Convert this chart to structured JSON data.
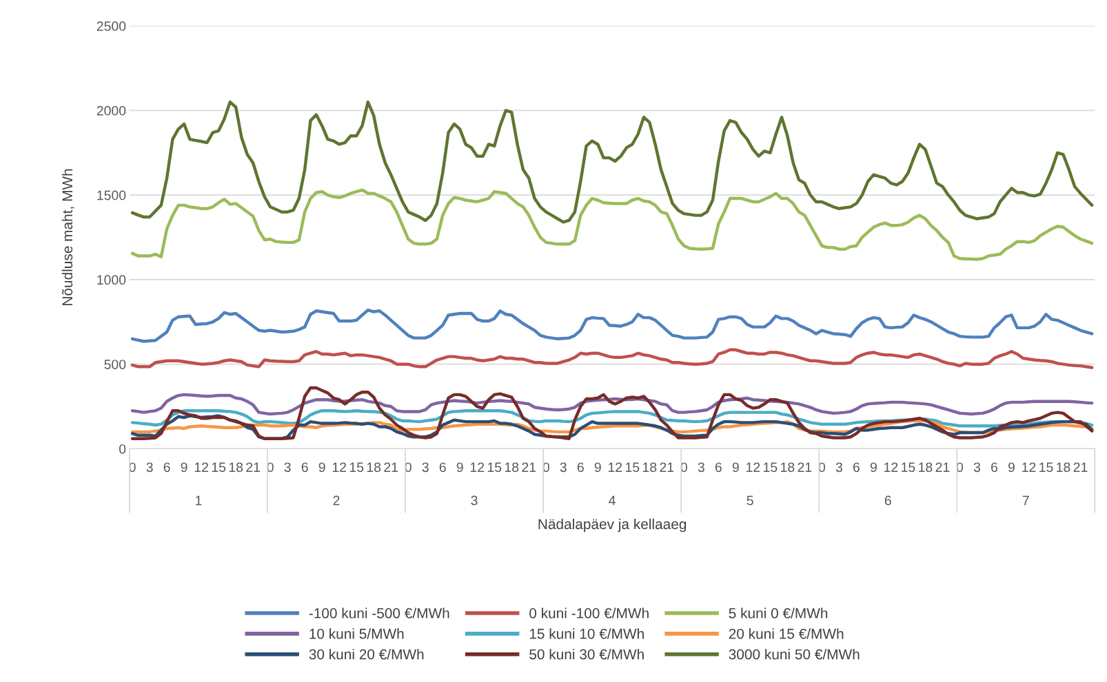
{
  "chart_data": {
    "type": "line",
    "xlabel": "Nädalapäev ja kellaaeg",
    "ylabel": "Nõudluse maht, MWh",
    "ylim": [
      0,
      2500
    ],
    "yticks": [
      0,
      500,
      1000,
      1500,
      2000,
      2500
    ],
    "categories": [
      "0",
      null,
      null,
      "3",
      null,
      null,
      "6",
      null,
      null,
      "9",
      null,
      null,
      "12",
      null,
      null,
      "15",
      null,
      null,
      "18",
      null,
      null,
      "21",
      null,
      null,
      "0",
      null,
      null,
      "3",
      null,
      null,
      "6",
      null,
      null,
      "9",
      null,
      null,
      "12",
      null,
      null,
      "15",
      null,
      null,
      "18",
      null,
      null,
      "21",
      null,
      null,
      "0",
      null,
      null,
      "3",
      null,
      null,
      "6",
      null,
      null,
      "9",
      null,
      null,
      "12",
      null,
      null,
      "15",
      null,
      null,
      "18",
      null,
      null,
      "21",
      null,
      null,
      "0",
      null,
      null,
      "3",
      null,
      null,
      "6",
      null,
      null,
      "9",
      null,
      null,
      "12",
      null,
      null,
      "15",
      null,
      null,
      "18",
      null,
      null,
      "21",
      null,
      null,
      "0",
      null,
      null,
      "3",
      null,
      null,
      "6",
      null,
      null,
      "9",
      null,
      null,
      "12",
      null,
      null,
      "15",
      null,
      null,
      "18",
      null,
      null,
      "21",
      null,
      null,
      "0",
      null,
      null,
      "3",
      null,
      null,
      "6",
      null,
      null,
      "9",
      null,
      null,
      "12",
      null,
      null,
      "15",
      null,
      null,
      "18",
      null,
      null,
      "21",
      null,
      null,
      "0",
      null,
      null,
      "3",
      null,
      null,
      "6",
      null,
      null,
      "9",
      null,
      null,
      "12",
      null,
      null,
      "15",
      null,
      null,
      "18",
      null,
      null,
      "21",
      null,
      null
    ],
    "annotations": [
      "1",
      "2",
      "3",
      "4",
      "5",
      "6",
      "7"
    ],
    "grid": "y",
    "legend": "bottom",
    "marker": "none",
    "line_style": "solid",
    "series": [
      {
        "name": "-100 kuni -500 €/MWh",
        "color": "#4f81bd",
        "values": [
          650,
          642,
          635,
          638,
          640,
          665,
          690,
          760,
          780,
          783,
          785,
          735,
          738,
          740,
          750,
          770,
          805,
          795,
          800,
          775,
          750,
          725,
          700,
          695,
          700,
          695,
          690,
          692,
          695,
          705,
          720,
          795,
          815,
          810,
          805,
          800,
          755,
          755,
          755,
          760,
          790,
          820,
          810,
          815,
          790,
          760,
          730,
          700,
          670,
          655,
          655,
          655,
          670,
          700,
          730,
          790,
          795,
          800,
          800,
          800,
          765,
          755,
          755,
          770,
          815,
          795,
          790,
          765,
          740,
          720,
          700,
          670,
          660,
          655,
          650,
          652,
          655,
          670,
          700,
          765,
          775,
          772,
          770,
          730,
          728,
          725,
          735,
          750,
          795,
          775,
          775,
          760,
          730,
          700,
          670,
          665,
          655,
          655,
          655,
          658,
          660,
          690,
          765,
          770,
          780,
          780,
          770,
          735,
          720,
          720,
          720,
          745,
          785,
          770,
          770,
          755,
          730,
          715,
          700,
          680,
          700,
          690,
          680,
          678,
          675,
          665,
          710,
          745,
          765,
          775,
          770,
          720,
          715,
          718,
          720,
          745,
          790,
          775,
          765,
          750,
          730,
          710,
          690,
          680,
          665,
          662,
          660,
          660,
          660,
          665,
          715,
          745,
          780,
          790,
          715,
          715,
          715,
          725,
          750,
          795,
          765,
          760,
          745,
          730,
          715,
          700,
          690,
          680
        ]
      },
      {
        "name": "0 kuni -100 €/MWh",
        "color": "#c0504d",
        "values": [
          495,
          485,
          485,
          485,
          510,
          515,
          520,
          520,
          520,
          515,
          510,
          505,
          500,
          502,
          505,
          510,
          520,
          525,
          520,
          515,
          495,
          490,
          485,
          525,
          520,
          518,
          517,
          515,
          515,
          520,
          555,
          565,
          575,
          560,
          560,
          555,
          560,
          565,
          550,
          555,
          555,
          550,
          545,
          540,
          530,
          520,
          500,
          500,
          500,
          490,
          485,
          485,
          505,
          525,
          535,
          545,
          545,
          540,
          535,
          535,
          525,
          520,
          525,
          530,
          545,
          535,
          535,
          530,
          530,
          520,
          510,
          510,
          505,
          505,
          505,
          515,
          525,
          540,
          565,
          560,
          565,
          565,
          555,
          545,
          540,
          540,
          545,
          550,
          565,
          555,
          550,
          540,
          530,
          525,
          510,
          510,
          505,
          502,
          500,
          502,
          505,
          515,
          560,
          570,
          585,
          585,
          575,
          565,
          565,
          560,
          560,
          570,
          570,
          565,
          555,
          550,
          540,
          530,
          520,
          520,
          515,
          510,
          505,
          505,
          505,
          510,
          540,
          555,
          565,
          570,
          560,
          555,
          555,
          550,
          545,
          540,
          555,
          560,
          550,
          540,
          530,
          515,
          505,
          500,
          490,
          505,
          500,
          500,
          500,
          505,
          535,
          550,
          560,
          575,
          560,
          535,
          530,
          525,
          522,
          520,
          515,
          505,
          500,
          495,
          492,
          490,
          485,
          480
        ]
      },
      {
        "name": "5 kuni 0 €/MWh",
        "color": "#9bbb59",
        "values": [
          1155,
          1140,
          1140,
          1140,
          1150,
          1135,
          1300,
          1380,
          1440,
          1440,
          1430,
          1425,
          1420,
          1420,
          1430,
          1455,
          1475,
          1445,
          1450,
          1425,
          1400,
          1375,
          1290,
          1235,
          1240,
          1225,
          1222,
          1220,
          1220,
          1235,
          1400,
          1480,
          1515,
          1520,
          1500,
          1490,
          1485,
          1495,
          1510,
          1520,
          1530,
          1510,
          1510,
          1495,
          1480,
          1460,
          1400,
          1320,
          1240,
          1215,
          1210,
          1210,
          1215,
          1240,
          1380,
          1450,
          1485,
          1480,
          1470,
          1465,
          1460,
          1470,
          1480,
          1520,
          1515,
          1510,
          1480,
          1450,
          1430,
          1380,
          1310,
          1250,
          1220,
          1215,
          1210,
          1210,
          1210,
          1230,
          1380,
          1440,
          1480,
          1470,
          1455,
          1452,
          1450,
          1450,
          1450,
          1470,
          1480,
          1465,
          1460,
          1440,
          1400,
          1390,
          1320,
          1240,
          1200,
          1185,
          1182,
          1180,
          1182,
          1185,
          1330,
          1400,
          1480,
          1480,
          1480,
          1470,
          1460,
          1460,
          1475,
          1490,
          1510,
          1480,
          1480,
          1450,
          1400,
          1380,
          1320,
          1260,
          1200,
          1190,
          1190,
          1180,
          1180,
          1195,
          1200,
          1250,
          1280,
          1310,
          1325,
          1335,
          1320,
          1320,
          1325,
          1340,
          1365,
          1380,
          1360,
          1320,
          1290,
          1250,
          1220,
          1140,
          1125,
          1123,
          1122,
          1120,
          1125,
          1140,
          1145,
          1150,
          1180,
          1200,
          1225,
          1225,
          1220,
          1230,
          1260,
          1280,
          1300,
          1315,
          1310,
          1285,
          1260,
          1240,
          1228,
          1215
        ]
      },
      {
        "name": "10 kuni 5/MWh",
        "color": "#8064a2",
        "values": [
          225,
          220,
          215,
          220,
          225,
          240,
          280,
          300,
          315,
          320,
          318,
          315,
          312,
          310,
          312,
          315,
          315,
          315,
          300,
          295,
          280,
          260,
          215,
          210,
          205,
          208,
          210,
          215,
          230,
          250,
          270,
          280,
          290,
          290,
          290,
          285,
          280,
          282,
          285,
          288,
          290,
          280,
          275,
          270,
          255,
          250,
          225,
          220,
          220,
          220,
          220,
          230,
          260,
          270,
          275,
          280,
          285,
          282,
          280,
          275,
          270,
          275,
          280,
          282,
          285,
          282,
          280,
          275,
          270,
          265,
          245,
          240,
          235,
          232,
          230,
          232,
          235,
          245,
          270,
          280,
          285,
          288,
          290,
          292,
          295,
          292,
          290,
          292,
          295,
          290,
          285,
          280,
          265,
          260,
          225,
          215,
          215,
          218,
          220,
          225,
          230,
          250,
          275,
          285,
          290,
          292,
          295,
          300,
          290,
          288,
          285,
          282,
          280,
          278,
          275,
          270,
          265,
          255,
          245,
          230,
          220,
          215,
          210,
          212,
          215,
          220,
          235,
          255,
          265,
          268,
          270,
          272,
          275,
          275,
          275,
          272,
          270,
          268,
          265,
          260,
          250,
          240,
          230,
          220,
          210,
          208,
          205,
          208,
          210,
          220,
          235,
          255,
          270,
          275,
          275,
          275,
          278,
          280,
          280,
          280,
          280,
          280,
          280,
          280,
          278,
          275,
          272,
          270
        ]
      },
      {
        "name": "15 kuni 10 €/MWh",
        "color": "#4bacc6",
        "values": [
          155,
          152,
          148,
          145,
          140,
          145,
          170,
          200,
          215,
          225,
          225,
          225,
          225,
          225,
          225,
          225,
          222,
          220,
          215,
          205,
          190,
          165,
          155,
          160,
          160,
          158,
          155,
          152,
          150,
          155,
          175,
          200,
          215,
          225,
          225,
          225,
          222,
          220,
          222,
          225,
          222,
          220,
          220,
          215,
          210,
          195,
          175,
          165,
          165,
          162,
          160,
          165,
          170,
          175,
          195,
          215,
          220,
          222,
          225,
          225,
          225,
          225,
          225,
          225,
          225,
          220,
          215,
          200,
          185,
          165,
          162,
          160,
          165,
          165,
          165,
          162,
          160,
          165,
          180,
          200,
          210,
          212,
          215,
          218,
          220,
          220,
          220,
          220,
          220,
          215,
          210,
          200,
          185,
          170,
          168,
          165,
          165,
          162,
          160,
          162,
          165,
          180,
          195,
          210,
          215,
          215,
          215,
          215,
          215,
          215,
          215,
          215,
          215,
          205,
          200,
          190,
          175,
          165,
          155,
          150,
          145,
          145,
          145,
          145,
          145,
          150,
          155,
          158,
          160,
          162,
          165,
          165,
          165,
          168,
          170,
          170,
          170,
          172,
          175,
          170,
          165,
          150,
          145,
          140,
          135,
          135,
          135,
          135,
          135,
          135,
          135,
          138,
          140,
          142,
          145,
          148,
          150,
          152,
          155,
          158,
          160,
          160,
          160,
          160,
          160,
          155,
          150,
          140
        ]
      },
      {
        "name": "20 kuni 15 €/MWh",
        "color": "#f79646",
        "values": [
          100,
          100,
          100,
          100,
          105,
          110,
          120,
          122,
          125,
          120,
          130,
          132,
          135,
          132,
          130,
          128,
          125,
          125,
          125,
          130,
          140,
          140,
          140,
          140,
          135,
          135,
          135,
          138,
          140,
          135,
          130,
          130,
          125,
          135,
          138,
          140,
          142,
          145,
          145,
          145,
          148,
          150,
          155,
          155,
          145,
          140,
          115,
          110,
          115,
          115,
          115,
          118,
          120,
          125,
          125,
          130,
          135,
          138,
          140,
          142,
          145,
          145,
          145,
          145,
          145,
          142,
          140,
          145,
          135,
          120,
          110,
          105,
          105,
          102,
          100,
          100,
          100,
          110,
          120,
          120,
          125,
          128,
          130,
          132,
          135,
          135,
          135,
          135,
          135,
          138,
          140,
          130,
          120,
          110,
          105,
          100,
          100,
          102,
          105,
          108,
          110,
          115,
          125,
          130,
          130,
          135,
          140,
          142,
          145,
          148,
          150,
          152,
          155,
          155,
          160,
          145,
          120,
          110,
          105,
          105,
          105,
          102,
          100,
          100,
          100,
          105,
          120,
          125,
          130,
          135,
          140,
          145,
          150,
          155,
          160,
          162,
          165,
          165,
          165,
          158,
          150,
          130,
          120,
          110,
          100,
          98,
          95,
          95,
          95,
          100,
          105,
          110,
          115,
          118,
          120,
          122,
          125,
          128,
          130,
          135,
          140,
          140,
          140,
          138,
          135,
          132,
          130,
          120
        ]
      },
      {
        "name": "30 kuni 20 €/MWh",
        "color": "#2c4d75",
        "values": [
          90,
          80,
          80,
          80,
          75,
          110,
          145,
          165,
          190,
          185,
          195,
          190,
          185,
          188,
          190,
          195,
          185,
          170,
          165,
          150,
          125,
          115,
          70,
          60,
          60,
          60,
          60,
          70,
          110,
          140,
          140,
          160,
          155,
          150,
          150,
          150,
          152,
          155,
          152,
          150,
          145,
          150,
          145,
          130,
          130,
          120,
          100,
          90,
          75,
          70,
          70,
          70,
          80,
          100,
          140,
          155,
          170,
          165,
          160,
          160,
          160,
          160,
          160,
          165,
          150,
          150,
          145,
          135,
          120,
          105,
          85,
          80,
          75,
          72,
          70,
          70,
          70,
          85,
          120,
          140,
          160,
          150,
          150,
          150,
          150,
          150,
          150,
          150,
          150,
          145,
          140,
          135,
          125,
          110,
          90,
          80,
          75,
          75,
          75,
          78,
          80,
          120,
          145,
          160,
          160,
          158,
          155,
          155,
          155,
          158,
          160,
          160,
          160,
          155,
          150,
          145,
          135,
          115,
          100,
          95,
          95,
          90,
          90,
          88,
          85,
          100,
          120,
          110,
          110,
          115,
          120,
          122,
          125,
          125,
          125,
          132,
          140,
          145,
          140,
          130,
          115,
          100,
          90,
          85,
          95,
          95,
          95,
          95,
          95,
          110,
          120,
          115,
          125,
          128,
          130,
          132,
          135,
          140,
          145,
          150,
          155,
          158,
          160,
          160,
          160,
          152,
          145,
          110
        ]
      },
      {
        "name": "50 kuni 30 €/MWh",
        "color": "#772c2a",
        "values": [
          60,
          60,
          60,
          62,
          65,
          90,
          160,
          225,
          225,
          210,
          200,
          195,
          180,
          180,
          185,
          185,
          185,
          170,
          160,
          150,
          140,
          135,
          75,
          60,
          60,
          60,
          60,
          62,
          65,
          180,
          310,
          360,
          360,
          345,
          330,
          300,
          290,
          265,
          290,
          320,
          335,
          335,
          305,
          240,
          200,
          175,
          140,
          120,
          95,
          80,
          70,
          65,
          70,
          90,
          200,
          300,
          320,
          320,
          310,
          280,
          250,
          240,
          290,
          320,
          325,
          315,
          305,
          250,
          180,
          160,
          120,
          100,
          75,
          72,
          70,
          65,
          60,
          170,
          250,
          295,
          295,
          300,
          320,
          280,
          265,
          280,
          300,
          305,
          300,
          310,
          275,
          230,
          170,
          140,
          100,
          65,
          65,
          65,
          65,
          68,
          70,
          170,
          260,
          320,
          320,
          295,
          285,
          255,
          240,
          245,
          265,
          290,
          290,
          280,
          270,
          210,
          155,
          120,
          95,
          90,
          75,
          70,
          65,
          65,
          65,
          70,
          90,
          120,
          140,
          150,
          155,
          160,
          160,
          162,
          165,
          170,
          175,
          180,
          170,
          150,
          130,
          110,
          85,
          70,
          65,
          65,
          65,
          68,
          70,
          80,
          95,
          130,
          140,
          155,
          160,
          155,
          165,
          172,
          180,
          195,
          210,
          215,
          210,
          185,
          160,
          160,
          135,
          105
        ]
      },
      {
        "name": "3000 kuni 50 €/MWh",
        "color": "#5f7530",
        "values": [
          1395,
          1382,
          1370,
          1370,
          1405,
          1440,
          1600,
          1830,
          1890,
          1920,
          1830,
          1823,
          1817,
          1810,
          1870,
          1880,
          1950,
          2050,
          2020,
          1840,
          1740,
          1690,
          1580,
          1490,
          1430,
          1415,
          1400,
          1400,
          1410,
          1480,
          1650,
          1940,
          1975,
          1910,
          1830,
          1820,
          1800,
          1810,
          1850,
          1850,
          1910,
          2050,
          1970,
          1800,
          1690,
          1620,
          1540,
          1460,
          1400,
          1385,
          1370,
          1350,
          1380,
          1450,
          1630,
          1870,
          1920,
          1890,
          1800,
          1780,
          1730,
          1730,
          1800,
          1790,
          1910,
          2000,
          1990,
          1800,
          1650,
          1600,
          1480,
          1430,
          1400,
          1380,
          1360,
          1340,
          1350,
          1400,
          1580,
          1790,
          1820,
          1800,
          1720,
          1720,
          1700,
          1730,
          1780,
          1800,
          1860,
          1960,
          1930,
          1800,
          1650,
          1550,
          1450,
          1410,
          1390,
          1385,
          1380,
          1380,
          1400,
          1470,
          1700,
          1880,
          1940,
          1930,
          1870,
          1830,
          1770,
          1730,
          1760,
          1750,
          1860,
          1960,
          1850,
          1690,
          1590,
          1570,
          1500,
          1460,
          1460,
          1445,
          1430,
          1420,
          1425,
          1430,
          1450,
          1500,
          1580,
          1620,
          1610,
          1600,
          1570,
          1560,
          1580,
          1630,
          1720,
          1800,
          1770,
          1670,
          1570,
          1550,
          1500,
          1460,
          1410,
          1380,
          1370,
          1360,
          1365,
          1370,
          1390,
          1460,
          1500,
          1540,
          1515,
          1515,
          1500,
          1495,
          1505,
          1570,
          1650,
          1750,
          1740,
          1650,
          1550,
          1510,
          1475,
          1440
        ]
      }
    ]
  }
}
